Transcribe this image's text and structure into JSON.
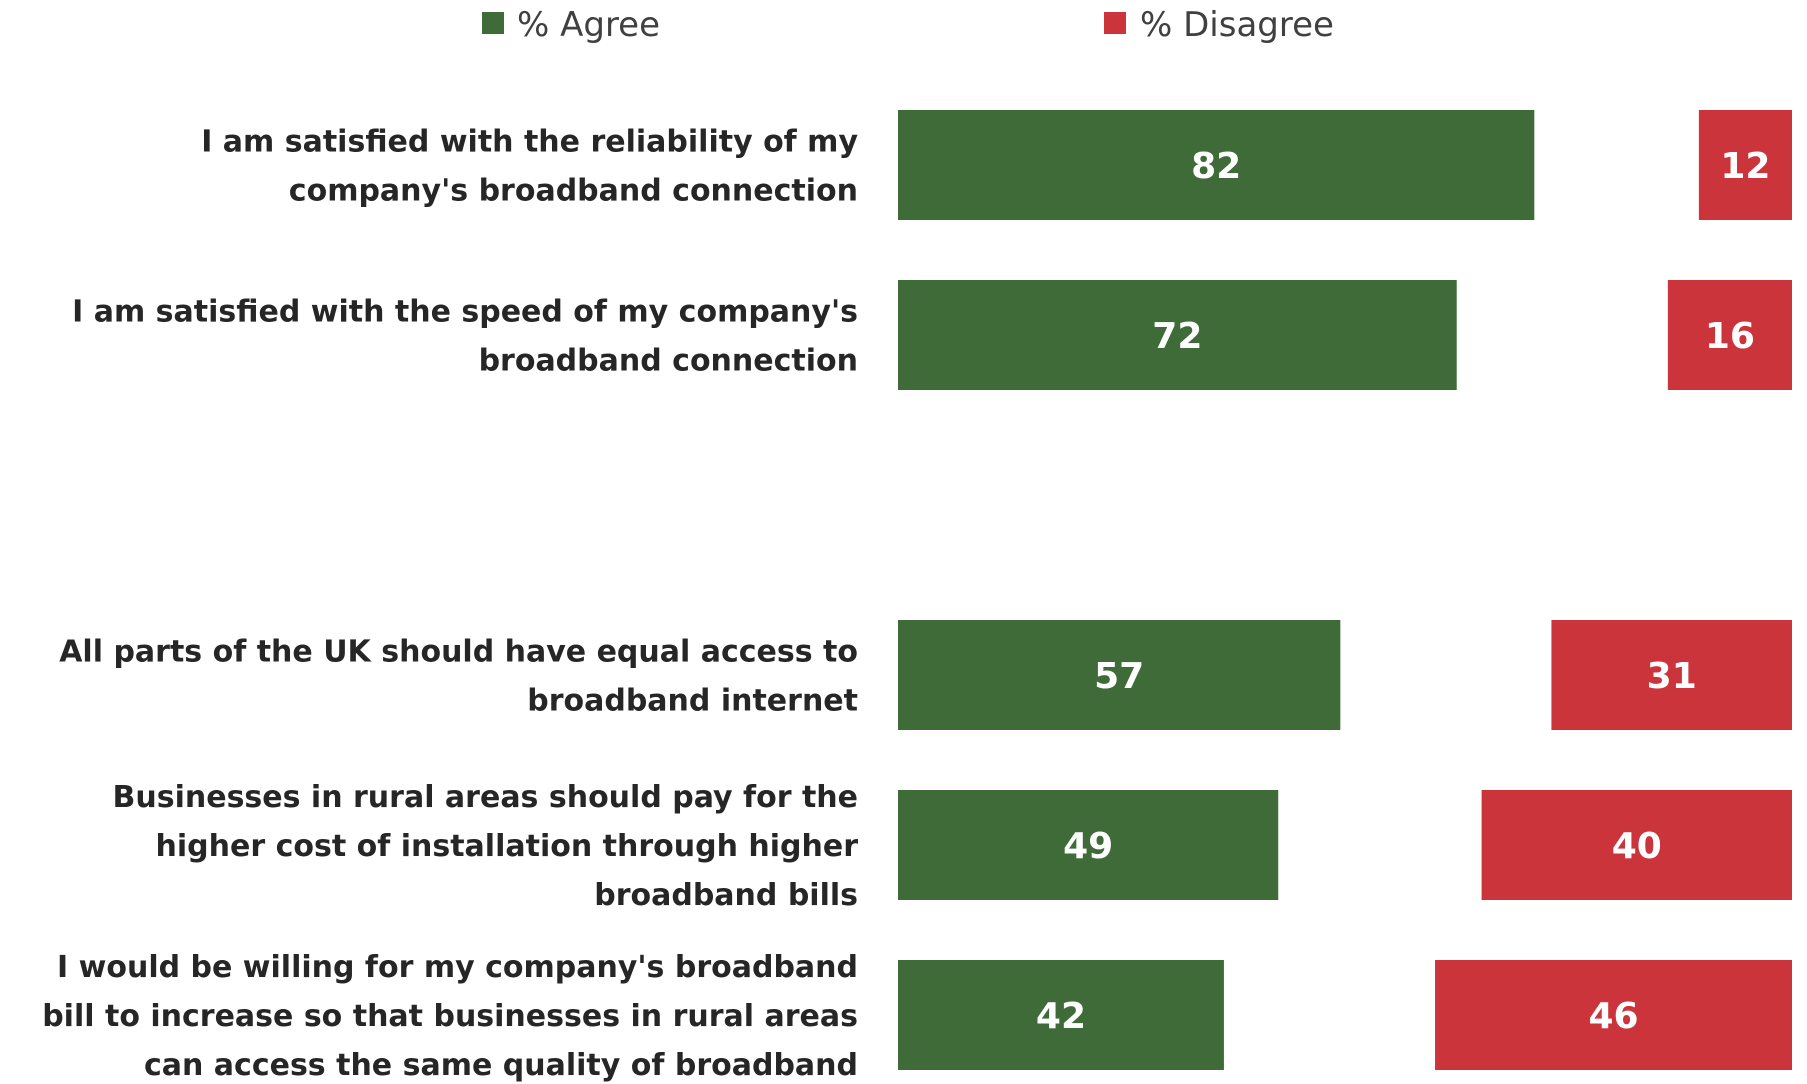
{
  "chart_data": {
    "type": "bar",
    "orientation": "horizontal",
    "layout": "diverging-side-by-side",
    "legend_position": "top",
    "grid": false,
    "categories": [
      [
        "I am satisfied with the reliability of my",
        "company's broadband connection"
      ],
      [
        "I am satisfied with the speed of my company's",
        "broadband connection"
      ],
      [
        "All parts of the UK should have equal access to",
        "broadband internet"
      ],
      [
        "Businesses in rural areas should pay for the",
        "higher cost of installation through higher",
        "broadband bills"
      ],
      [
        "I would be willing for my company's broadband",
        "bill to increase so that businesses in rural areas",
        "can access the same quality of broadband"
      ]
    ],
    "groups": [
      [
        0,
        1
      ],
      [
        2,
        3,
        4
      ]
    ],
    "series": [
      {
        "name": "% Agree",
        "color": "#3e6b37",
        "values": [
          82,
          72,
          57,
          49,
          42
        ]
      },
      {
        "name": "% Disagree",
        "color": "#cc343c",
        "values": [
          12,
          16,
          31,
          40,
          46
        ]
      }
    ],
    "xlim": [
      0,
      100
    ]
  }
}
